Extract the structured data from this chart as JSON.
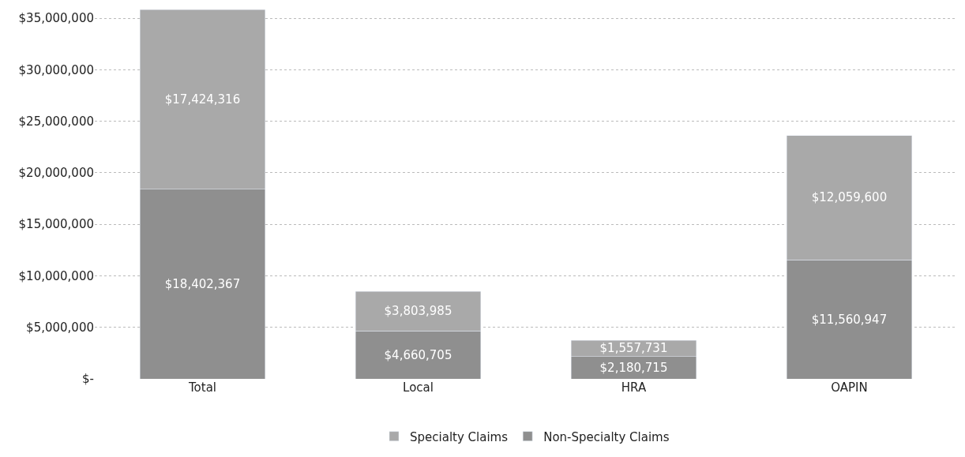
{
  "chart_data": {
    "type": "bar",
    "stacked": true,
    "categories": [
      "Total",
      "Local",
      "HRA",
      "OAPIN"
    ],
    "series": [
      {
        "name": "Non-Specialty Claims",
        "color": "#8f8f8f",
        "values": [
          18402367,
          4660705,
          2180715,
          11560947
        ],
        "value_labels": [
          "$18,402,367",
          "$4,660,705",
          "$2,180,715",
          "$11,560,947"
        ]
      },
      {
        "name": "Specialty Claims",
        "color": "#a9a9a9",
        "values": [
          17424316,
          3803985,
          1557731,
          12059600
        ],
        "value_labels": [
          "$17,424,316",
          "$3,803,985",
          "$1,557,731",
          "$12,059,600"
        ]
      }
    ],
    "ylim": [
      0,
      36000000
    ],
    "yticks": [
      {
        "value": 0,
        "label": "$-"
      },
      {
        "value": 5000000,
        "label": "$5,000,000"
      },
      {
        "value": 10000000,
        "label": "$10,000,000"
      },
      {
        "value": 15000000,
        "label": "$15,000,000"
      },
      {
        "value": 20000000,
        "label": "$20,000,000"
      },
      {
        "value": 25000000,
        "label": "$25,000,000"
      },
      {
        "value": 30000000,
        "label": "$30,000,000"
      },
      {
        "value": 35000000,
        "label": "$35,000,000"
      }
    ],
    "grid": "y",
    "legend": "bottom"
  }
}
